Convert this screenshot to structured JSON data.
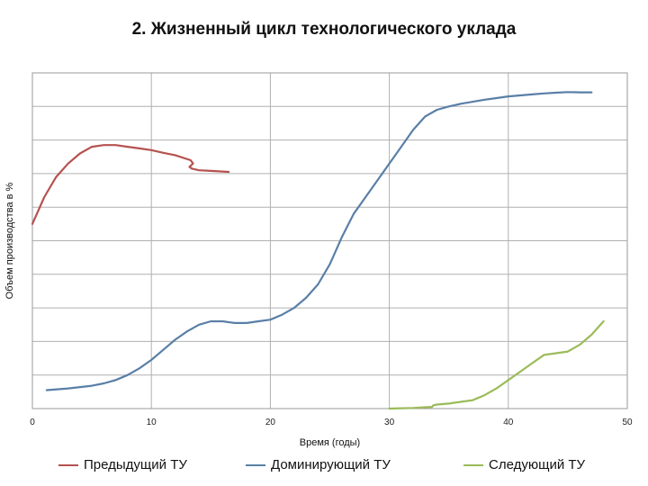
{
  "title": "2. Жизненный цикл технологического уклада",
  "chart_data": {
    "type": "line",
    "xlabel": "Время (годы)",
    "ylabel": "Объем производства в %",
    "xlim": [
      0,
      50
    ],
    "ylim": [
      0,
      10
    ],
    "xticks": [
      "0",
      "10",
      "20",
      "30",
      "40",
      "50"
    ],
    "grid": "horizontal",
    "legend_position": "bottom",
    "series": [
      {
        "name": "Предыдущий ТУ",
        "color": "#b5524f",
        "points": [
          [
            0,
            5.5
          ],
          [
            1,
            6.3
          ],
          [
            2,
            6.9
          ],
          [
            3,
            7.3
          ],
          [
            4,
            7.6
          ],
          [
            5,
            7.8
          ],
          [
            6,
            7.85
          ],
          [
            7,
            7.85
          ],
          [
            8,
            7.8
          ],
          [
            9,
            7.75
          ],
          [
            10,
            7.7
          ],
          [
            11,
            7.62
          ],
          [
            12,
            7.55
          ],
          [
            13.3,
            7.4
          ],
          [
            13.5,
            7.3
          ],
          [
            13.2,
            7.2
          ],
          [
            13.4,
            7.15
          ],
          [
            14,
            7.1
          ],
          [
            15,
            7.08
          ],
          [
            16.5,
            7.05
          ]
        ]
      },
      {
        "name": "Доминирующий ТУ",
        "color": "#5a7fa7",
        "points": [
          [
            1.2,
            0.55
          ],
          [
            3,
            0.6
          ],
          [
            5,
            0.68
          ],
          [
            6,
            0.75
          ],
          [
            7,
            0.85
          ],
          [
            8,
            1.0
          ],
          [
            9,
            1.2
          ],
          [
            10,
            1.45
          ],
          [
            11,
            1.75
          ],
          [
            12,
            2.05
          ],
          [
            13,
            2.3
          ],
          [
            14,
            2.5
          ],
          [
            15,
            2.6
          ],
          [
            16,
            2.6
          ],
          [
            17,
            2.55
          ],
          [
            18,
            2.55
          ],
          [
            19,
            2.6
          ],
          [
            20,
            2.65
          ],
          [
            21,
            2.8
          ],
          [
            22,
            3.0
          ],
          [
            23,
            3.3
          ],
          [
            24,
            3.7
          ],
          [
            25,
            4.3
          ],
          [
            26,
            5.1
          ],
          [
            27,
            5.8
          ],
          [
            28,
            6.3
          ],
          [
            29,
            6.8
          ],
          [
            30,
            7.3
          ],
          [
            31,
            7.8
          ],
          [
            32,
            8.3
          ],
          [
            33,
            8.7
          ],
          [
            34,
            8.9
          ],
          [
            35,
            9.0
          ],
          [
            36,
            9.08
          ],
          [
            37,
            9.14
          ],
          [
            38,
            9.2
          ],
          [
            39,
            9.25
          ],
          [
            40,
            9.3
          ],
          [
            41,
            9.33
          ],
          [
            42,
            9.36
          ],
          [
            43,
            9.39
          ],
          [
            44,
            9.41
          ],
          [
            45,
            9.43
          ],
          [
            46,
            9.42
          ],
          [
            47,
            9.42
          ]
        ]
      },
      {
        "name": "Следующий ТУ",
        "color": "#9bbb59",
        "points": [
          [
            30,
            0
          ],
          [
            31,
            0.01
          ],
          [
            32,
            0.02
          ],
          [
            33,
            0.04
          ],
          [
            33.6,
            0.05
          ],
          [
            33.7,
            0.1
          ],
          [
            34,
            0.12
          ],
          [
            35,
            0.15
          ],
          [
            36,
            0.2
          ],
          [
            37,
            0.25
          ],
          [
            38,
            0.4
          ],
          [
            39,
            0.6
          ],
          [
            40,
            0.85
          ],
          [
            41,
            1.1
          ],
          [
            42,
            1.35
          ],
          [
            43,
            1.6
          ],
          [
            44,
            1.65
          ],
          [
            45,
            1.7
          ],
          [
            46,
            1.9
          ],
          [
            47,
            2.2
          ],
          [
            48,
            2.6
          ]
        ]
      }
    ]
  }
}
